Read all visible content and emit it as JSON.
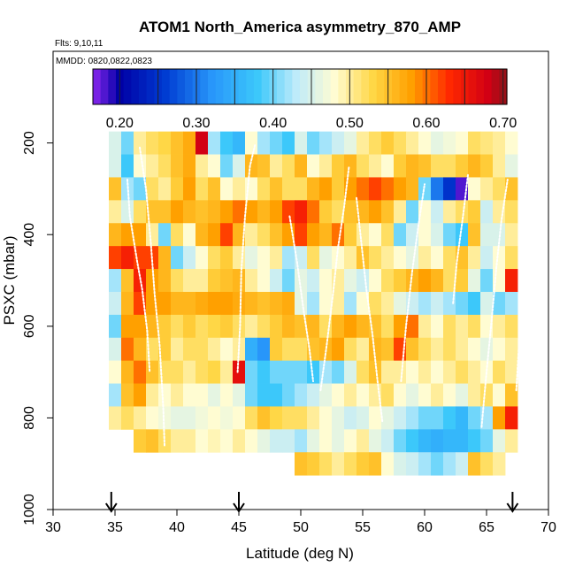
{
  "chart_data": {
    "type": "heatmap",
    "title": "ATOM1 North_America asymmetry_870_AMP",
    "flights_label": "Flts: 9,10,11",
    "dates_label": "MMDD: 0820,0822,0823",
    "xlabel": "Latitude (deg N)",
    "ylabel": "PSXC (mbar)",
    "xlim": [
      30,
      70
    ],
    "ylim": [
      1000,
      0
    ],
    "xticks": [
      "30",
      "35",
      "40",
      "45",
      "50",
      "55",
      "60",
      "65",
      "70"
    ],
    "yticks": [
      "200",
      "400",
      "600",
      "800",
      "1000"
    ],
    "colorbar": {
      "range": [
        0.165,
        0.705
      ],
      "ticks": [
        "0.20",
        "0.30",
        "0.40",
        "0.50",
        "0.60",
        "0.70"
      ],
      "tick_values": [
        0.2,
        0.3,
        0.4,
        0.5,
        0.6,
        0.7
      ]
    },
    "arrow_latitudes": [
      34.7,
      45,
      67.1
    ],
    "grid": {
      "lat_start": 35,
      "lat_step": 1,
      "pressure_levels": [
        200,
        250,
        300,
        350,
        400,
        450,
        500,
        550,
        600,
        650,
        700,
        750,
        800,
        850,
        900
      ],
      "values": [
        [
          0.45,
          0.4,
          0.5,
          0.52,
          0.53,
          0.55,
          0.57,
          0.68,
          0.42,
          0.38,
          0.36,
          0.48,
          0.42,
          0.4,
          0.38,
          0.45,
          0.4,
          0.42,
          0.44,
          0.46,
          0.5,
          0.52,
          0.54,
          0.52,
          0.5,
          0.48,
          0.46,
          0.47,
          0.48,
          0.52,
          0.51,
          0.5,
          0.48
        ],
        [
          0.45,
          0.38,
          0.48,
          0.5,
          0.52,
          0.55,
          0.57,
          0.5,
          0.48,
          0.4,
          0.45,
          0.56,
          0.55,
          0.5,
          0.52,
          0.56,
          0.48,
          0.5,
          0.54,
          0.56,
          0.52,
          0.5,
          0.48,
          0.54,
          0.56,
          0.55,
          0.52,
          0.52,
          0.54,
          0.56,
          0.54,
          0.5,
          0.46
        ],
        [
          0.55,
          0.42,
          0.4,
          0.52,
          0.5,
          0.54,
          0.58,
          0.52,
          0.55,
          0.48,
          0.5,
          0.48,
          0.52,
          0.55,
          0.52,
          0.52,
          0.56,
          0.58,
          0.54,
          0.58,
          0.6,
          0.62,
          0.6,
          0.58,
          0.56,
          0.4,
          0.3,
          0.25,
          0.18,
          0.48,
          0.5,
          0.52,
          0.55
        ],
        [
          0.5,
          0.45,
          0.52,
          0.55,
          0.55,
          0.58,
          0.56,
          0.55,
          0.56,
          0.58,
          0.6,
          0.58,
          0.56,
          0.58,
          0.62,
          0.64,
          0.6,
          0.54,
          0.52,
          0.55,
          0.56,
          0.58,
          0.55,
          0.5,
          0.4,
          0.48,
          0.44,
          0.5,
          0.52,
          0.54,
          0.44,
          0.5,
          0.52
        ],
        [
          0.56,
          0.58,
          0.58,
          0.5,
          0.4,
          0.52,
          0.48,
          0.56,
          0.58,
          0.62,
          0.56,
          0.5,
          0.52,
          0.55,
          0.58,
          0.62,
          0.58,
          0.56,
          0.6,
          0.54,
          0.5,
          0.48,
          0.52,
          0.4,
          0.44,
          0.48,
          0.45,
          0.4,
          0.38,
          0.55,
          0.45,
          0.45,
          0.5
        ],
        [
          0.62,
          0.64,
          0.62,
          0.62,
          0.56,
          0.4,
          0.44,
          0.48,
          0.52,
          0.54,
          0.5,
          0.46,
          0.48,
          0.5,
          0.42,
          0.44,
          0.52,
          0.46,
          0.48,
          0.5,
          0.55,
          0.52,
          0.5,
          0.48,
          0.46,
          0.5,
          0.48,
          0.52,
          0.55,
          0.5,
          0.44,
          0.48,
          0.52
        ],
        [
          0.42,
          0.55,
          0.64,
          0.58,
          0.56,
          0.52,
          0.5,
          0.5,
          0.54,
          0.55,
          0.56,
          0.5,
          0.48,
          0.44,
          0.4,
          0.46,
          0.44,
          0.48,
          0.5,
          0.46,
          0.44,
          0.48,
          0.52,
          0.54,
          0.56,
          0.58,
          0.56,
          0.52,
          0.54,
          0.46,
          0.4,
          0.48,
          0.64
        ],
        [
          0.44,
          0.56,
          0.62,
          0.58,
          0.58,
          0.56,
          0.56,
          0.57,
          0.58,
          0.58,
          0.57,
          0.56,
          0.55,
          0.56,
          0.57,
          0.46,
          0.42,
          0.48,
          0.5,
          0.42,
          0.48,
          0.52,
          0.5,
          0.46,
          0.44,
          0.42,
          0.44,
          0.42,
          0.4,
          0.38,
          0.45,
          0.4,
          0.42
        ],
        [
          0.4,
          0.58,
          0.58,
          0.56,
          0.54,
          0.52,
          0.54,
          0.52,
          0.53,
          0.54,
          0.52,
          0.5,
          0.52,
          0.54,
          0.56,
          0.55,
          0.56,
          0.52,
          0.56,
          0.58,
          0.56,
          0.55,
          0.52,
          0.58,
          0.6,
          0.5,
          0.48,
          0.52,
          0.5,
          0.52,
          0.48,
          0.5,
          0.52
        ],
        [
          0.45,
          0.6,
          0.56,
          0.52,
          0.54,
          0.5,
          0.52,
          0.52,
          0.5,
          0.48,
          0.5,
          0.35,
          0.32,
          0.54,
          0.52,
          0.52,
          0.55,
          0.56,
          0.58,
          0.52,
          0.5,
          0.56,
          0.55,
          0.62,
          0.55,
          0.52,
          0.5,
          0.52,
          0.5,
          0.48,
          0.46,
          0.48,
          0.5
        ],
        [
          0.48,
          0.56,
          0.6,
          0.55,
          0.52,
          0.52,
          0.5,
          0.52,
          0.53,
          0.5,
          0.66,
          0.4,
          0.38,
          0.4,
          0.4,
          0.4,
          0.38,
          0.42,
          0.4,
          0.45,
          0.52,
          0.55,
          0.5,
          0.5,
          0.48,
          0.5,
          0.48,
          0.5,
          0.52,
          0.5,
          0.48,
          0.52,
          0.5
        ],
        [
          0.42,
          0.55,
          0.58,
          0.5,
          0.48,
          0.5,
          0.48,
          0.48,
          0.46,
          0.48,
          0.46,
          0.4,
          0.38,
          0.38,
          0.4,
          0.42,
          0.44,
          0.46,
          0.48,
          0.5,
          0.48,
          0.5,
          0.52,
          0.48,
          0.46,
          0.48,
          0.5,
          0.48,
          0.46,
          0.5,
          0.52,
          0.48,
          0.55
        ],
        [
          0.5,
          0.52,
          0.5,
          0.48,
          0.47,
          0.46,
          0.46,
          0.47,
          0.48,
          0.47,
          0.48,
          0.52,
          0.55,
          0.53,
          0.52,
          0.52,
          0.5,
          0.48,
          0.46,
          0.44,
          0.45,
          0.48,
          0.46,
          0.44,
          0.42,
          0.4,
          0.4,
          0.38,
          0.36,
          0.4,
          0.42,
          0.58,
          0.64
        ],
        [
          0.0,
          0.0,
          0.54,
          0.55,
          0.52,
          0.5,
          0.5,
          0.48,
          0.49,
          0.48,
          0.5,
          0.48,
          0.46,
          0.44,
          0.44,
          0.42,
          0.46,
          0.48,
          0.46,
          0.48,
          0.5,
          0.46,
          0.44,
          0.4,
          0.38,
          0.36,
          0.35,
          0.36,
          0.36,
          0.38,
          0.4,
          0.46,
          0.5
        ],
        [
          0.0,
          0.0,
          0.0,
          0.0,
          0.0,
          0.0,
          0.0,
          0.0,
          0.0,
          0.0,
          0.0,
          0.0,
          0.0,
          0.0,
          0.0,
          0.55,
          0.54,
          0.52,
          0.5,
          0.52,
          0.54,
          0.55,
          0.48,
          0.45,
          0.44,
          0.42,
          0.4,
          0.42,
          0.44,
          0.55,
          0.52,
          0.5,
          0.0
        ]
      ],
      "profiles": [
        [
          [
            36.0,
            280
          ],
          [
            36.2,
            360
          ],
          [
            36.8,
            460
          ],
          [
            37.2,
            520
          ],
          [
            37.6,
            610
          ],
          [
            37.8,
            700
          ]
        ],
        [
          [
            37.0,
            210
          ],
          [
            37.5,
            300
          ],
          [
            37.9,
            420
          ],
          [
            38.2,
            530
          ],
          [
            38.6,
            640
          ],
          [
            38.9,
            780
          ],
          [
            39.0,
            860
          ]
        ],
        [
          [
            44.9,
            700
          ],
          [
            45.1,
            600
          ],
          [
            45.2,
            480
          ],
          [
            45.5,
            360
          ],
          [
            45.9,
            250
          ],
          [
            46.3,
            205
          ]
        ],
        [
          [
            49.1,
            360
          ],
          [
            49.7,
            460
          ],
          [
            50.2,
            560
          ],
          [
            50.7,
            650
          ],
          [
            51.0,
            720
          ]
        ],
        [
          [
            51.6,
            740
          ],
          [
            52.1,
            640
          ],
          [
            52.6,
            530
          ],
          [
            53.0,
            430
          ],
          [
            53.5,
            340
          ],
          [
            53.9,
            250
          ]
        ],
        [
          [
            54.5,
            320
          ],
          [
            54.9,
            420
          ],
          [
            55.3,
            520
          ],
          [
            55.8,
            620
          ],
          [
            56.2,
            720
          ],
          [
            56.6,
            810
          ]
        ],
        [
          [
            58.1,
            720
          ],
          [
            58.5,
            600
          ],
          [
            59.0,
            480
          ],
          [
            59.5,
            380
          ],
          [
            60.0,
            290
          ]
        ],
        [
          [
            62.3,
            550
          ],
          [
            62.6,
            460
          ],
          [
            63.1,
            360
          ],
          [
            63.5,
            270
          ]
        ],
        [
          [
            64.6,
            820
          ],
          [
            65.0,
            700
          ],
          [
            65.4,
            590
          ],
          [
            65.8,
            470
          ],
          [
            66.2,
            370
          ],
          [
            66.7,
            280
          ]
        ],
        [
          [
            67.4,
            740
          ],
          [
            67.6,
            650
          ],
          [
            67.8,
            560
          ],
          [
            68.0,
            470
          ]
        ]
      ]
    }
  }
}
